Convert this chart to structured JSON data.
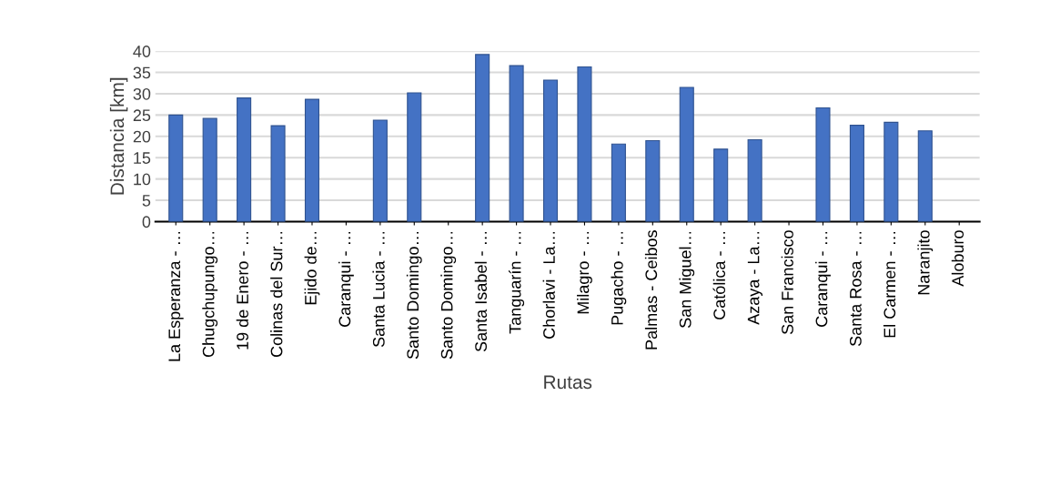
{
  "chart_data": {
    "type": "bar",
    "xlabel": "Rutas",
    "ylabel": "Distancia [km]",
    "categories": [
      "La Esperanza - …",
      "Chugchupungo…",
      "19 de Enero - …",
      "Colinas del Sur…",
      "Ejido de…",
      "Caranqui - …",
      "Santa Lucia - …",
      "Santo Domingo…",
      "Santo Domingo…",
      "Santa Isabel - …",
      "Tanguarín - …",
      "Chorlavi - La…",
      "Milagro - …",
      "Pugacho - …",
      "Palmas - Ceibos",
      "San Miguel…",
      "Católica - …",
      "Azaya - La…",
      "San Francisco",
      "Caranqui - …",
      "Santa Rosa - …",
      "El Carmen - …",
      "Naranjito",
      "Aloburo"
    ],
    "values": [
      25,
      24.2,
      29,
      22.5,
      28.7,
      null,
      23.8,
      30.2,
      null,
      39.2,
      36.6,
      33.2,
      36.3,
      18.2,
      19,
      31.5,
      17,
      19.2,
      null,
      26.7,
      22.6,
      23.3,
      21.3,
      null
    ],
    "color": "#4472c4",
    "ylim": [
      0,
      40
    ],
    "yticks": [
      0,
      5,
      10,
      15,
      20,
      25,
      30,
      35,
      40
    ],
    "grid": "y"
  }
}
